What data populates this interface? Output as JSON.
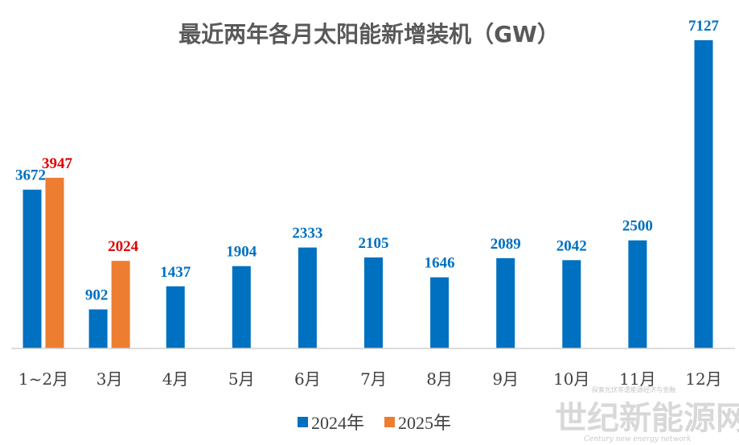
{
  "chart_data": {
    "type": "bar",
    "title": "最近两年各月太阳能新增装机（GW）",
    "categories": [
      "1~2月",
      "3月",
      "4月",
      "5月",
      "6月",
      "7月",
      "8月",
      "9月",
      "10月",
      "11月",
      "12月"
    ],
    "series": [
      {
        "name": "2024年",
        "color": "#0070C0",
        "label_color": "#0070C0",
        "values": [
          3672,
          902,
          1437,
          1904,
          2333,
          2105,
          1646,
          2089,
          2042,
          2500,
          7127
        ]
      },
      {
        "name": "2025年",
        "color": "#ED7D31",
        "label_color": "#E00000",
        "values": [
          3947,
          2024,
          null,
          null,
          null,
          null,
          null,
          null,
          null,
          null,
          null
        ]
      }
    ],
    "xlabel": "",
    "ylabel": "",
    "ylim": [
      0,
      7500
    ],
    "grid": false,
    "legend_position": "bottom"
  },
  "watermark": {
    "main": "世纪新能源网",
    "sub": "Century new energy network",
    "top": "探索光伏非遗能源经济与金融"
  }
}
